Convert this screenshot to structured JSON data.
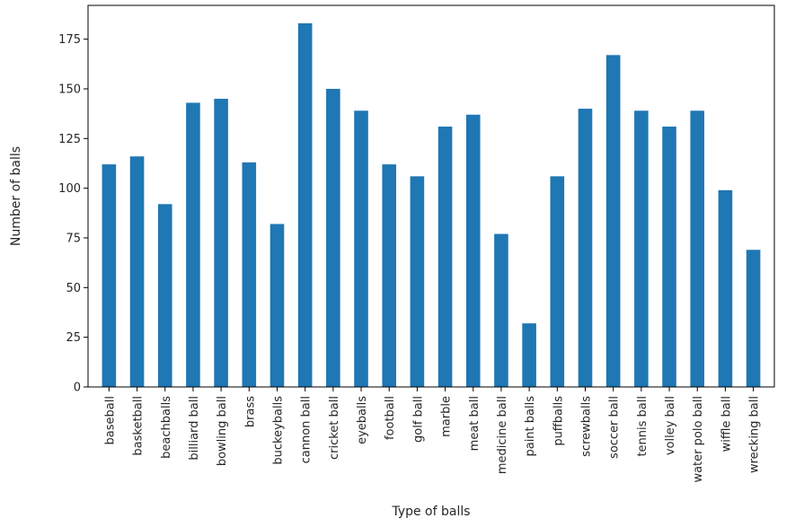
{
  "chart_data": {
    "type": "bar",
    "title": "",
    "xlabel": "Type of balls",
    "ylabel": "Number of balls",
    "ylim": [
      0,
      192
    ],
    "yticks": [
      0,
      25,
      50,
      75,
      100,
      125,
      150,
      175
    ],
    "grid": false,
    "bar_color": "#1f77b4",
    "categories": [
      "baseball",
      "basketball",
      "beachballs",
      "billiard ball",
      "bowling ball",
      "brass",
      "buckeyballs",
      "cannon ball",
      "cricket ball",
      "eyeballs",
      "football",
      "golf ball",
      "marble",
      "meat ball",
      "medicine ball",
      "paint balls",
      "puffballs",
      "screwballs",
      "soccer ball",
      "tennis ball",
      "volley ball",
      "water polo ball",
      "wiffle ball",
      "wrecking ball"
    ],
    "values": [
      112,
      116,
      92,
      143,
      145,
      113,
      82,
      183,
      150,
      139,
      112,
      106,
      131,
      137,
      77,
      32,
      106,
      140,
      167,
      139,
      131,
      139,
      99,
      69
    ]
  }
}
